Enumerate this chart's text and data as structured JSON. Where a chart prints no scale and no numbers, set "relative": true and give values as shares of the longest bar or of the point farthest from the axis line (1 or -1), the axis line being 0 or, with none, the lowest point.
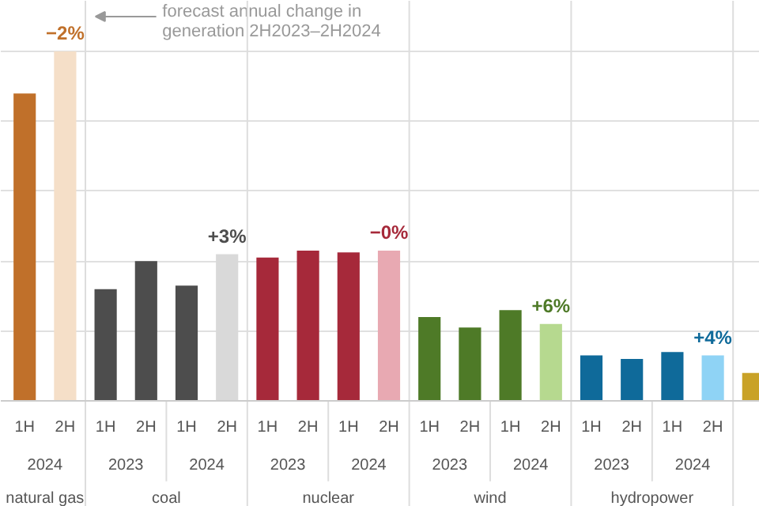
{
  "chart_data": {
    "type": "bar",
    "relative": true,
    "grid": "y",
    "categories": [
      "1H",
      "2H",
      "1H",
      "2H",
      "1H",
      "2H",
      "1H",
      "2H",
      "1H",
      "2H",
      "1H",
      "2H",
      "1H",
      "2H",
      "1H",
      "2H",
      "1H",
      "2H",
      null
    ],
    "values": [
      0.88,
      1.0,
      0.32,
      0.4,
      0.33,
      0.42,
      0.41,
      0.43,
      0.425,
      0.43,
      0.24,
      0.21,
      0.26,
      0.22,
      0.13,
      0.12,
      0.14,
      0.13,
      0.08
    ],
    "colors": [
      "#c0702a",
      "#f5dfc8",
      "#4d4d4d",
      "#4d4d4d",
      "#4d4d4d",
      "#d9d9d9",
      "#a6293a",
      "#a6293a",
      "#a6293a",
      "#e8a9b2",
      "#4e7a27",
      "#4e7a27",
      "#4e7a27",
      "#b6d98f",
      "#0f6a9a",
      "#0f6a9a",
      "#0f6a9a",
      "#8fd3f5",
      "#c9a227"
    ],
    "annotations": [
      "forecast annual change in\ngeneration 2H2023–2H2024",
      "2024",
      "2023",
      "2024",
      "2023",
      "2024",
      "2023",
      "2024",
      "2023",
      "2024",
      "natural gas",
      "coal",
      "nuclear",
      "wind",
      "hydropower",
      "−2%",
      "+3%",
      "−0%",
      "+6%",
      "+4%"
    ]
  }
}
